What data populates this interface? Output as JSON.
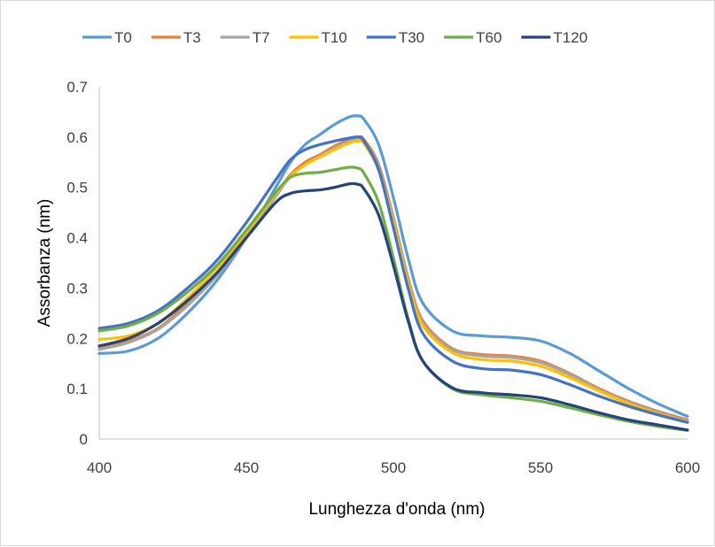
{
  "chart_data": {
    "type": "line",
    "xlabel": "Lunghezza d'onda (nm)",
    "ylabel": "Assorbanza (nm)",
    "xlim": [
      400,
      600
    ],
    "ylim": [
      0,
      0.7
    ],
    "x_ticks": [
      "400",
      "450",
      "500",
      "550",
      "600"
    ],
    "y_ticks": [
      "0",
      "0.1",
      "0.2",
      "0.3",
      "0.4",
      "0.5",
      "0.6",
      "0.7"
    ],
    "grid": false,
    "legend_position": "top",
    "x": [
      400,
      410,
      420,
      430,
      440,
      450,
      460,
      465,
      470,
      475,
      480,
      485,
      488,
      490,
      495,
      500,
      505,
      510,
      520,
      530,
      540,
      550,
      560,
      570,
      580,
      590,
      600
    ],
    "series": [
      {
        "name": "T0",
        "color": "#5B9BD5",
        "values": [
          0.17,
          0.175,
          0.2,
          0.25,
          0.315,
          0.4,
          0.5,
          0.55,
          0.585,
          0.605,
          0.625,
          0.64,
          0.642,
          0.635,
          0.585,
          0.48,
          0.36,
          0.27,
          0.215,
          0.205,
          0.202,
          0.195,
          0.17,
          0.135,
          0.1,
          0.07,
          0.045
        ]
      },
      {
        "name": "T3",
        "color": "#ED7D31",
        "values": [
          0.18,
          0.195,
          0.22,
          0.27,
          0.33,
          0.405,
          0.485,
          0.525,
          0.55,
          0.565,
          0.582,
          0.595,
          0.6,
          0.595,
          0.545,
          0.44,
          0.32,
          0.235,
          0.18,
          0.168,
          0.165,
          0.155,
          0.13,
          0.1,
          0.075,
          0.055,
          0.038
        ]
      },
      {
        "name": "T7",
        "color": "#A5A5A5",
        "values": [
          0.178,
          0.192,
          0.218,
          0.265,
          0.325,
          0.4,
          0.482,
          0.522,
          0.545,
          0.562,
          0.578,
          0.592,
          0.598,
          0.592,
          0.54,
          0.435,
          0.315,
          0.23,
          0.178,
          0.165,
          0.162,
          0.152,
          0.128,
          0.098,
          0.073,
          0.053,
          0.036
        ]
      },
      {
        "name": "T10",
        "color": "#FFC000",
        "values": [
          0.198,
          0.205,
          0.23,
          0.28,
          0.34,
          0.41,
          0.487,
          0.522,
          0.545,
          0.56,
          0.575,
          0.588,
          0.592,
          0.587,
          0.535,
          0.43,
          0.31,
          0.225,
          0.172,
          0.158,
          0.155,
          0.145,
          0.122,
          0.095,
          0.07,
          0.05,
          0.034
        ]
      },
      {
        "name": "T30",
        "color": "#4472C4",
        "values": [
          0.22,
          0.23,
          0.255,
          0.3,
          0.355,
          0.43,
          0.515,
          0.555,
          0.575,
          0.585,
          0.592,
          0.598,
          0.6,
          0.592,
          0.535,
          0.42,
          0.3,
          0.21,
          0.155,
          0.14,
          0.137,
          0.128,
          0.108,
          0.085,
          0.065,
          0.048,
          0.033
        ]
      },
      {
        "name": "T60",
        "color": "#70AD47",
        "values": [
          0.215,
          0.225,
          0.25,
          0.292,
          0.345,
          0.415,
          0.49,
          0.52,
          0.528,
          0.53,
          0.535,
          0.54,
          0.538,
          0.528,
          0.47,
          0.36,
          0.24,
          0.155,
          0.1,
          0.088,
          0.082,
          0.075,
          0.062,
          0.048,
          0.035,
          0.025,
          0.017
        ]
      },
      {
        "name": "T120",
        "color": "#264478",
        "values": [
          0.185,
          0.2,
          0.23,
          0.275,
          0.33,
          0.4,
          0.47,
          0.488,
          0.493,
          0.495,
          0.5,
          0.507,
          0.506,
          0.497,
          0.445,
          0.345,
          0.235,
          0.155,
          0.102,
          0.092,
          0.088,
          0.082,
          0.068,
          0.052,
          0.038,
          0.028,
          0.018
        ]
      }
    ]
  }
}
